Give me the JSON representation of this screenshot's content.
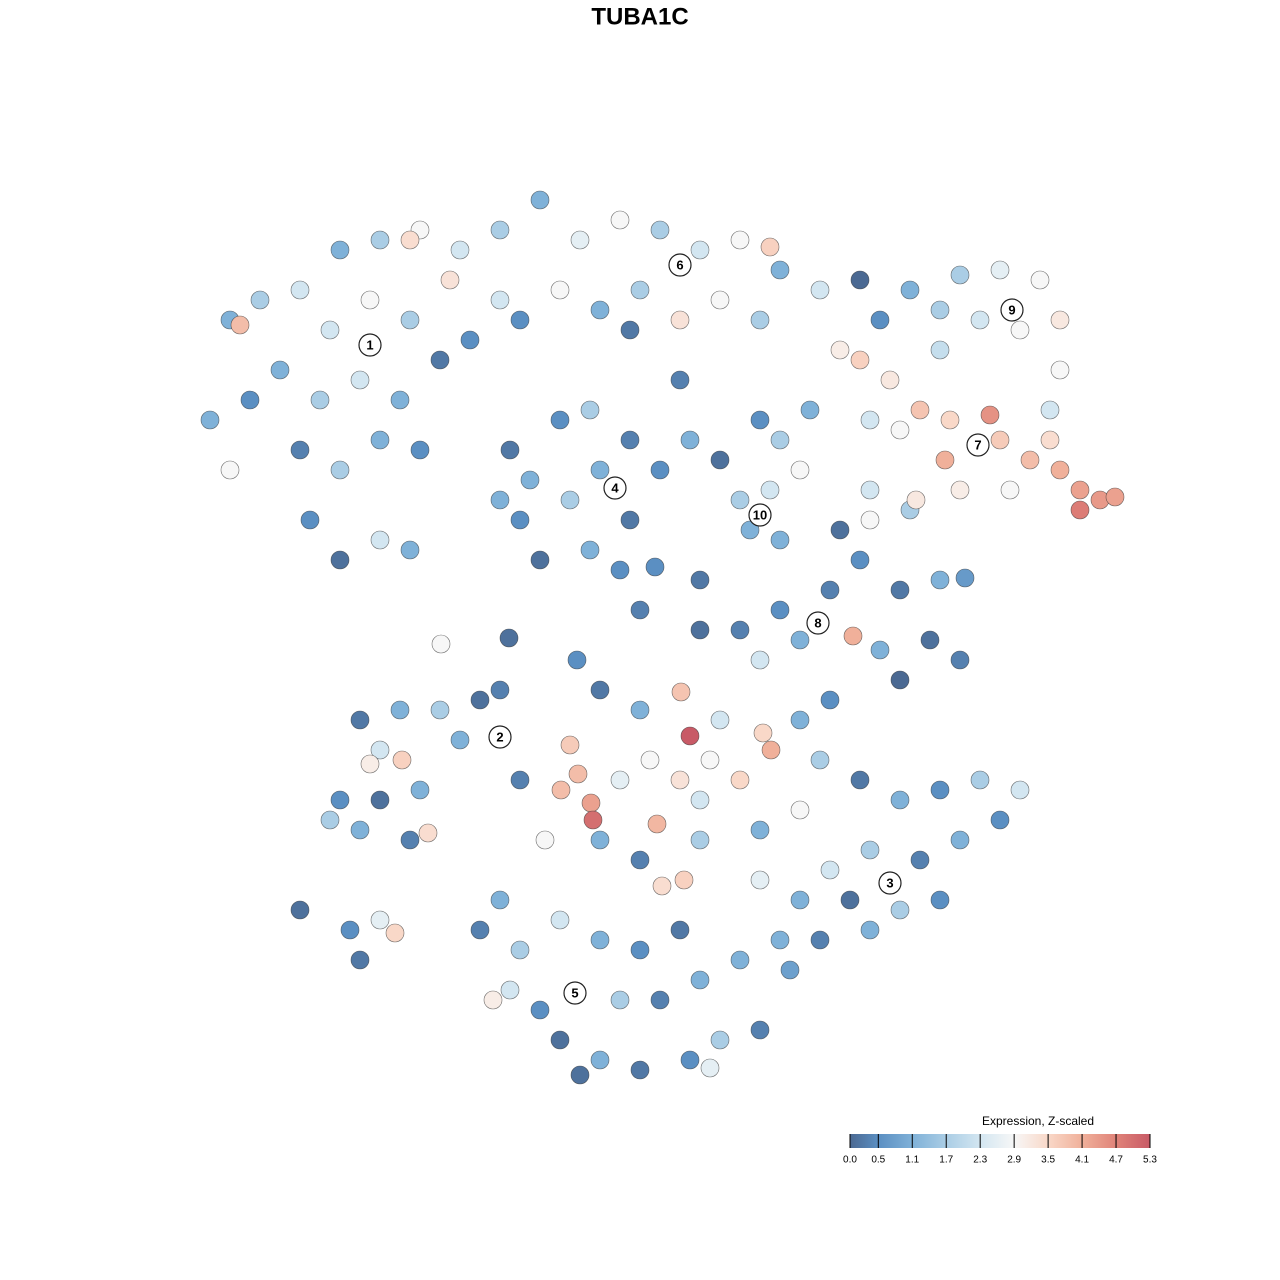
{
  "chart_data": {
    "type": "scatter",
    "title": "TUBA1C",
    "xlim": [
      -47,
      47
    ],
    "ylim": [
      -46,
      46
    ],
    "x": [
      -44,
      -41,
      -37,
      -33,
      -29,
      -25,
      -34,
      -30,
      -26,
      -39,
      -42,
      -46,
      -35,
      -31,
      -27,
      -23,
      -20,
      -37,
      -33,
      -29,
      -25,
      -36,
      -33,
      -29,
      -26,
      -43,
      -44,
      -17,
      -21,
      -17,
      -13,
      -9,
      -5,
      -1,
      3,
      7,
      10,
      11,
      15,
      -3,
      -7,
      -11,
      -15,
      1,
      5,
      9,
      -22,
      -26,
      -4,
      24,
      29,
      33,
      37,
      39,
      35,
      31,
      27,
      21,
      39,
      38,
      27,
      19,
      19,
      22,
      25,
      28,
      32,
      33,
      36,
      39,
      41,
      43,
      41,
      44.5,
      27.5,
      29,
      34,
      38,
      23,
      17,
      20,
      -16,
      -14,
      -11,
      -8,
      -4,
      -1,
      -7,
      -10,
      -15,
      -13,
      -8,
      -4,
      -5,
      -17,
      1,
      2,
      5,
      7,
      10,
      8,
      11,
      13,
      9,
      11,
      14,
      17,
      19,
      16,
      20,
      23,
      27,
      29.5,
      26,
      29,
      23,
      21,
      18.3,
      11,
      13,
      7,
      9,
      3,
      20,
      24,
      24.6,
      -31,
      -27,
      -23,
      -19,
      -17,
      -29,
      -26.8,
      -30,
      -21,
      -15,
      -33,
      -29,
      -25,
      -34,
      -26,
      -24.2,
      -31,
      -37,
      -32,
      -29,
      -27.5,
      -31,
      -7,
      -3,
      1.1,
      2,
      5,
      10.1,
      9.3,
      13,
      16,
      -10,
      -9.2,
      -10.9,
      -7.9,
      -7.7,
      -5,
      -2,
      1,
      4,
      7,
      3,
      -1.3,
      -7,
      -3,
      3,
      -0.8,
      1.4,
      9,
      13,
      15,
      -12.5,
      19,
      23,
      27,
      31,
      35,
      33,
      29,
      25,
      20,
      16,
      13,
      18,
      23,
      27,
      11,
      15,
      9,
      12,
      20,
      -17,
      -19,
      -15,
      -11,
      -7,
      -3,
      1,
      3,
      -1,
      -5,
      -13,
      -16,
      -17.7,
      -11,
      -7,
      -3,
      2,
      5,
      9,
      -9,
      7,
      4,
      -22.9,
      -16.1,
      -3,
      -9.3,
      3,
      -1.5
    ],
    "y": [
      32,
      34,
      35,
      39,
      40,
      41,
      31,
      34,
      32,
      27,
      24,
      22,
      24,
      26,
      24,
      28,
      30,
      19,
      17,
      20,
      19,
      12,
      8,
      10,
      9,
      31.5,
      17,
      34,
      39,
      41,
      44,
      40,
      42,
      41,
      39,
      40,
      39.3,
      37,
      35,
      35,
      33,
      35,
      32,
      32,
      34,
      32,
      36,
      40,
      31,
      35,
      36.5,
      37,
      36,
      32,
      31,
      32,
      33,
      32,
      27,
      23,
      29,
      36,
      28,
      26,
      23,
      22,
      22.5,
      20,
      18,
      17,
      15,
      14,
      13,
      14.3,
      18,
      15,
      15,
      20,
      21,
      29,
      22,
      19,
      16,
      22,
      23,
      20,
      17,
      17,
      14,
      12,
      8,
      9,
      12,
      7,
      14,
      26,
      20,
      18,
      14,
      15,
      11,
      20,
      17,
      22,
      10,
      23,
      11,
      8,
      5,
      12,
      5,
      6,
      6.2,
      0,
      -2,
      -4,
      -1,
      0.4,
      3,
      0,
      1,
      -2,
      1,
      15,
      13,
      14,
      -8,
      -7,
      -7,
      -6,
      -5,
      -11,
      -12,
      -12.4,
      -10,
      -14,
      -16,
      -16,
      -15,
      -18,
      -20,
      -19.3,
      -19,
      -27,
      -29,
      -28,
      -29.3,
      -32,
      -5,
      -7,
      -5.2,
      -9.6,
      -8,
      -11,
      -9.3,
      -8,
      -6,
      -10.5,
      -13.4,
      -15,
      -16.3,
      -18,
      -14,
      -12,
      -14,
      -12,
      -14,
      -16,
      -18.4,
      -20,
      -22,
      -20,
      -24.6,
      -24,
      -19,
      -17,
      -12,
      -20,
      -14,
      -16,
      -15,
      -14,
      -15,
      -18,
      -20,
      -22,
      -21,
      -23,
      -26,
      -26,
      -27,
      -26,
      -30,
      -30,
      -24,
      -33,
      -29,
      -26,
      -29,
      -31,
      -28,
      -30,
      -31,
      -29,
      -34,
      -36,
      -36,
      -37,
      -35,
      -36,
      -40,
      -42,
      -43,
      -42,
      -40,
      -39,
      -43.5,
      -32,
      -42.8,
      -0.4,
      0.2,
      3,
      -2,
      6,
      7.3
    ],
    "values": [
      1.1,
      1.7,
      2.3,
      1.1,
      1.7,
      2.9,
      2.3,
      2.9,
      1.7,
      1.1,
      0.5,
      1.1,
      1.7,
      2.3,
      1.1,
      0.2,
      0.5,
      0.3,
      1.7,
      1.1,
      0.5,
      0.5,
      0.1,
      2.3,
      1.1,
      3.9,
      2.9,
      2.3,
      2.3,
      1.7,
      1.1,
      2.6,
      2.9,
      1.7,
      2.3,
      2.9,
      3.6,
      1.1,
      2.3,
      1.7,
      1.1,
      2.9,
      0.5,
      3.3,
      2.9,
      1.7,
      3.3,
      3.4,
      0.2,
      1.1,
      1.7,
      2.6,
      2.9,
      3.2,
      2.9,
      2.3,
      1.7,
      0.5,
      2.9,
      2.3,
      2.1,
      0.0,
      3.6,
      3.2,
      3.8,
      3.5,
      4.5,
      3.7,
      3.9,
      4.1,
      4.3,
      4.4,
      4.8,
      4.3,
      4.1,
      3.1,
      2.9,
      3.4,
      2.9,
      3.1,
      2.3,
      0.2,
      1.1,
      0.5,
      1.7,
      0.3,
      0.5,
      1.1,
      1.7,
      0.5,
      0.1,
      1.1,
      0.2,
      0.5,
      1.1,
      0.3,
      1.1,
      0.1,
      1.7,
      2.3,
      1.1,
      1.7,
      2.9,
      0.5,
      1.1,
      1.1,
      0.1,
      0.5,
      0.3,
      2.9,
      0.2,
      1.1,
      0.7,
      0.1,
      0.3,
      0.0,
      1.1,
      4.1,
      0.5,
      1.1,
      0.3,
      2.3,
      0.1,
      2.3,
      1.7,
      3.2,
      0.2,
      1.1,
      1.7,
      0.1,
      0.3,
      2.3,
      3.6,
      3.1,
      1.1,
      0.3,
      0.5,
      0.1,
      1.1,
      1.7,
      0.3,
      3.4,
      1.1,
      0.1,
      0.5,
      2.6,
      3.5,
      0.2,
      0.2,
      1.1,
      3.8,
      5.3,
      2.3,
      4.1,
      3.5,
      1.1,
      0.5,
      3.7,
      3.9,
      3.9,
      4.3,
      5.0,
      2.6,
      2.9,
      3.3,
      2.9,
      3.5,
      2.3,
      4.0,
      1.1,
      0.3,
      1.7,
      3.4,
      3.6,
      1.1,
      2.9,
      1.7,
      2.9,
      0.2,
      1.1,
      0.5,
      1.7,
      2.3,
      0.5,
      1.1,
      0.3,
      1.7,
      2.3,
      1.1,
      0.1,
      1.7,
      0.5,
      1.1,
      0.3,
      2.6,
      0.8,
      1.1,
      1.1,
      0.3,
      1.7,
      2.3,
      1.1,
      0.5,
      0.2,
      1.1,
      0.3,
      1.7,
      0.5,
      2.3,
      3.1,
      0.1,
      1.1,
      0.2,
      0.5,
      1.7,
      0.3,
      0.1,
      1.1,
      2.6,
      2.9,
      0.1,
      0.3,
      0.5,
      0.2,
      0.5
    ],
    "annotations": [
      {
        "text": "1",
        "x": -30,
        "y": 29.5
      },
      {
        "text": "2",
        "x": -17,
        "y": -9.7
      },
      {
        "text": "3",
        "x": 22,
        "y": -24.3
      },
      {
        "text": "4",
        "x": -5.5,
        "y": 15.2
      },
      {
        "text": "5",
        "x": -9.5,
        "y": -35.3
      },
      {
        "text": "6",
        "x": 1,
        "y": 37.5
      },
      {
        "text": "7",
        "x": 30.8,
        "y": 19.5
      },
      {
        "text": "8",
        "x": 14.8,
        "y": 1.7
      },
      {
        "text": "9",
        "x": 34.2,
        "y": 33
      },
      {
        "text": "10",
        "x": 9,
        "y": 12.5
      }
    ],
    "colorbar": {
      "title": "Expression, Z-scaled",
      "ticks": [
        {
          "value": 0,
          "label": "0.0"
        },
        {
          "value": 0.5,
          "label": "0.5"
        },
        {
          "value": 1.1,
          "label": "1.1"
        },
        {
          "value": 1.7,
          "label": "1.7"
        },
        {
          "value": 2.3,
          "label": "2.3"
        },
        {
          "value": 2.9,
          "label": "2.9"
        },
        {
          "value": 3.5,
          "label": "3.5"
        },
        {
          "value": 4.1,
          "label": "4.1"
        },
        {
          "value": 4.7,
          "label": "4.7"
        },
        {
          "value": 5.3,
          "label": "5.3"
        }
      ],
      "colors": [
        "#4b6992",
        "#5b8fc2",
        "#7fb1d8",
        "#aacde5",
        "#d3e6f1",
        "#f7f7f7",
        "#f9d8c8",
        "#f0b09a",
        "#e08379",
        "#c85a66"
      ]
    }
  }
}
